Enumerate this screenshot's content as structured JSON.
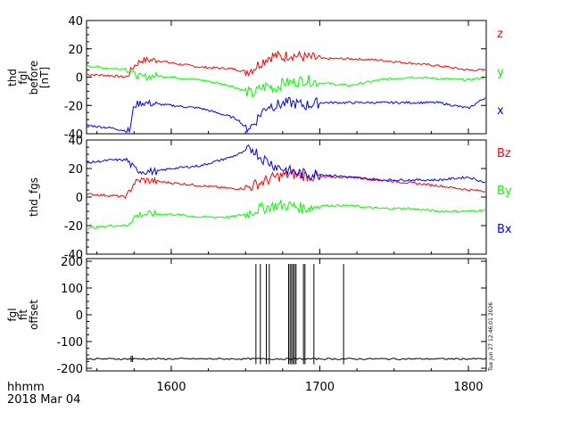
{
  "colors": {
    "red": "#ff0000",
    "green": "#00ff00",
    "blue": "#0000ff",
    "black": "#000000"
  },
  "footer": {
    "line1": "hhmm",
    "line2": "2018 Mar 04"
  },
  "timestamp": "Tue Jun 27 12:46:01 2026",
  "chart_data": [
    {
      "type": "line",
      "ylabel_lines": [
        "thd",
        "fgl",
        "before",
        "[nT]"
      ],
      "ylim": [
        -40,
        40
      ],
      "yticks": [
        -40,
        -20,
        0,
        20,
        40
      ],
      "xlim": [
        1543,
        1812
      ],
      "xticks": [
        1600,
        1700,
        1800
      ],
      "series": [
        {
          "name": "z",
          "color": "#ff0000",
          "x": [
            1543,
            1560,
            1570,
            1575,
            1580,
            1590,
            1600,
            1620,
            1640,
            1650,
            1655,
            1660,
            1665,
            1670,
            1675,
            1680,
            1690,
            1700,
            1720,
            1740,
            1760,
            1780,
            1800,
            1812
          ],
          "y": [
            2,
            1,
            0,
            8,
            12,
            12,
            10,
            7,
            6,
            4,
            6,
            10,
            14,
            15,
            14,
            16,
            14,
            13,
            13,
            12,
            10,
            8,
            5,
            5
          ]
        },
        {
          "name": "y",
          "color": "#00ff00",
          "x": [
            1543,
            1560,
            1570,
            1575,
            1580,
            1590,
            1600,
            1620,
            1640,
            1650,
            1655,
            1660,
            1665,
            1670,
            1675,
            1680,
            1690,
            1700,
            1720,
            1740,
            1760,
            1780,
            1800,
            1812
          ],
          "y": [
            8,
            6,
            6,
            2,
            0,
            1,
            0,
            -2,
            -6,
            -10,
            -12,
            -8,
            -6,
            -8,
            -4,
            -4,
            -2,
            -4,
            -6,
            -2,
            0,
            -1,
            -2,
            0
          ]
        },
        {
          "name": "x",
          "color": "#0000ff",
          "x": [
            1543,
            1560,
            1570,
            1572,
            1575,
            1580,
            1590,
            1600,
            1620,
            1640,
            1645,
            1650,
            1655,
            1660,
            1665,
            1670,
            1680,
            1690,
            1700,
            1720,
            1740,
            1760,
            1780,
            1800,
            1812
          ],
          "y": [
            -34,
            -36,
            -38,
            -38,
            -20,
            -18,
            -19,
            -20,
            -22,
            -28,
            -30,
            -36,
            -34,
            -26,
            -20,
            -20,
            -18,
            -20,
            -18,
            -18,
            -18,
            -18,
            -18,
            -22,
            -14
          ]
        }
      ]
    },
    {
      "type": "line",
      "ylabel_lines": [
        "thd_fgs"
      ],
      "ylim": [
        -40,
        40
      ],
      "yticks": [
        -40,
        -20,
        0,
        20,
        40
      ],
      "xlim": [
        1543,
        1812
      ],
      "xticks": [
        1600,
        1700,
        1800
      ],
      "series": [
        {
          "name": "Bz",
          "color": "#ff0000",
          "x": [
            1543,
            1560,
            1570,
            1575,
            1580,
            1590,
            1600,
            1620,
            1640,
            1650,
            1660,
            1670,
            1680,
            1690,
            1700,
            1720,
            1740,
            1760,
            1780,
            1800,
            1812
          ],
          "y": [
            2,
            1,
            0,
            10,
            12,
            11,
            10,
            8,
            6,
            6,
            10,
            14,
            16,
            15,
            14,
            14,
            12,
            10,
            8,
            5,
            4
          ]
        },
        {
          "name": "By",
          "color": "#00ff00",
          "x": [
            1543,
            1560,
            1570,
            1575,
            1580,
            1590,
            1600,
            1620,
            1640,
            1650,
            1655,
            1660,
            1670,
            1680,
            1690,
            1700,
            1720,
            1740,
            1760,
            1780,
            1800,
            1812
          ],
          "y": [
            -22,
            -20,
            -20,
            -14,
            -12,
            -12,
            -12,
            -14,
            -14,
            -12,
            -10,
            -8,
            -6,
            -6,
            -8,
            -6,
            -6,
            -8,
            -8,
            -10,
            -10,
            -9
          ]
        },
        {
          "name": "Bx",
          "color": "#0000ff",
          "x": [
            1543,
            1560,
            1570,
            1575,
            1580,
            1590,
            1600,
            1620,
            1640,
            1650,
            1655,
            1660,
            1670,
            1680,
            1690,
            1700,
            1720,
            1740,
            1760,
            1780,
            1800,
            1812
          ],
          "y": [
            24,
            26,
            26,
            20,
            18,
            18,
            20,
            22,
            28,
            32,
            34,
            28,
            22,
            18,
            16,
            16,
            14,
            12,
            12,
            12,
            14,
            10
          ]
        }
      ]
    },
    {
      "type": "line",
      "ylabel_lines": [
        "fgl",
        "fit",
        "offset"
      ],
      "ylim": [
        -210,
        210
      ],
      "yticks": [
        -200,
        -100,
        0,
        100,
        200
      ],
      "xlim": [
        1543,
        1812
      ],
      "xticks": [
        1600,
        1700,
        1800
      ],
      "series": [
        {
          "color": "#000000",
          "baseline": -165,
          "spikes": [
            1657,
            1660,
            1664,
            1666,
            1679,
            1680,
            1681,
            1682,
            1683,
            1684,
            1689,
            1690,
            1696,
            1716
          ],
          "spike_top": 190,
          "spike_bottom": -185
        }
      ]
    }
  ]
}
